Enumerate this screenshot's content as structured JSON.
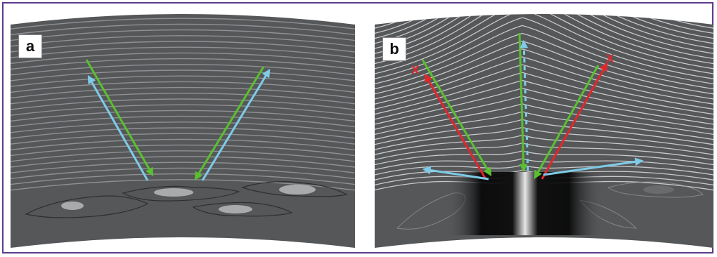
{
  "panels": [
    {
      "label": "a"
    },
    {
      "label": "b"
    }
  ],
  "markers": {
    "blocked": "X"
  },
  "colors": {
    "frame": "#5b3a8c",
    "tissue": "#555759",
    "fiber": "#8f9194",
    "fiber_dense": "#c8c9cb",
    "incident": "#5bbf2f",
    "scatter": "#7ecbe8",
    "blocked": "#e3262b",
    "cell_outline": "#2e2f30",
    "nucleus": "#a9aaab"
  },
  "icons": [
    "arrow-incident-icon",
    "arrow-scatter-icon",
    "arrow-blocked-icon",
    "cross-icon"
  ]
}
